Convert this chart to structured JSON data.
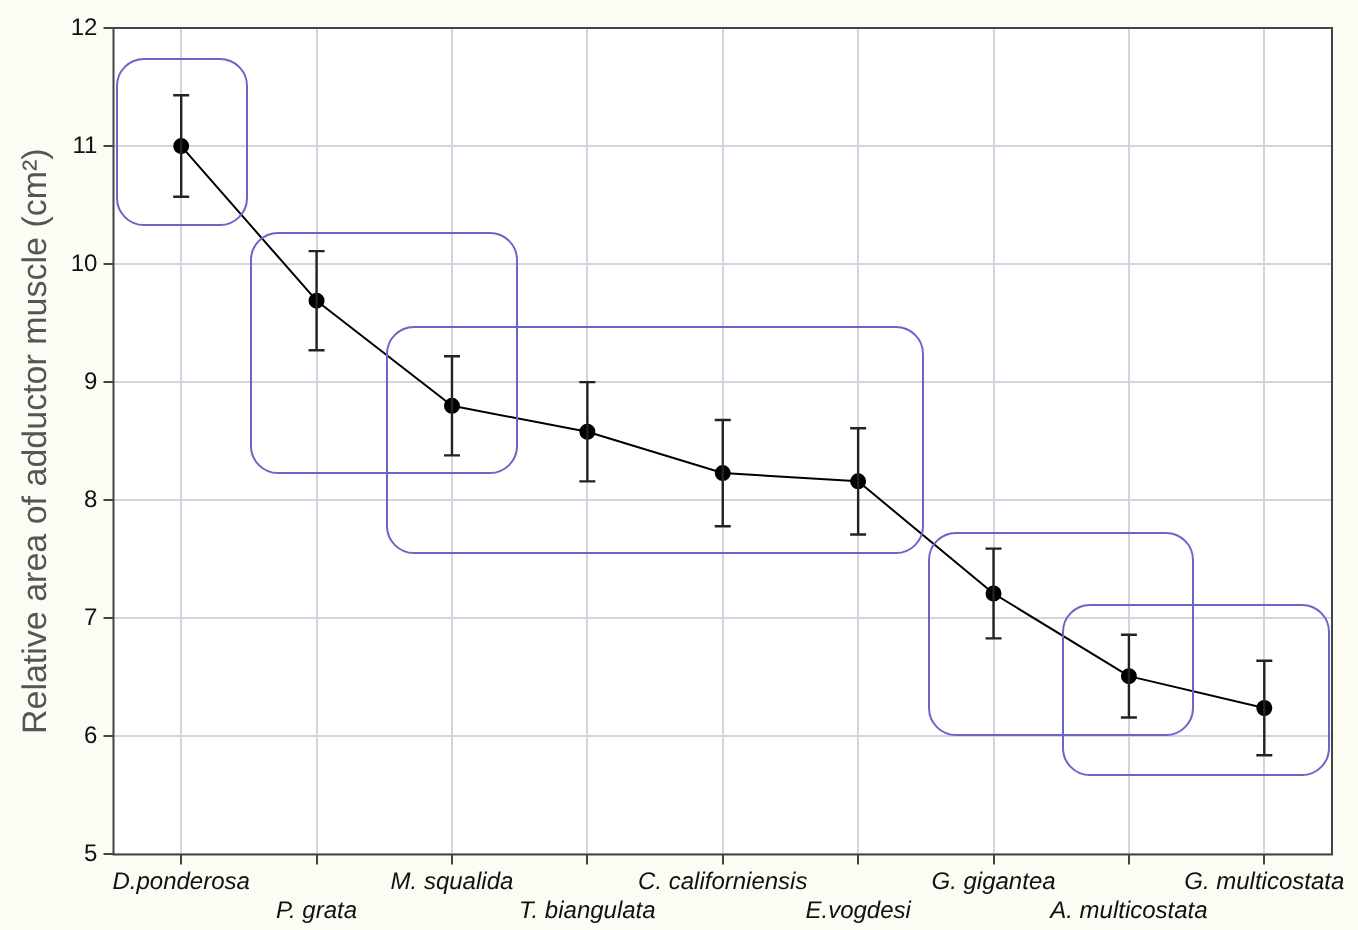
{
  "chart_data": {
    "type": "line",
    "categories": [
      "D.ponderosa",
      "P. grata",
      "M. squalida",
      "T. biangulata",
      "C. californiensis",
      "E.vogdesi",
      "G. gigantea",
      "A. multicostata",
      "G. multicostata"
    ],
    "series": [
      {
        "color": "#000000",
        "values": [
          11.0,
          9.69,
          8.8,
          8.58,
          8.23,
          8.16,
          7.21,
          6.51,
          6.24
        ],
        "errors": [
          0.43,
          0.42,
          0.42,
          0.42,
          0.45,
          0.45,
          0.38,
          0.35,
          0.4
        ]
      }
    ],
    "ylabel": "Relative area of adductor muscle (cm²)",
    "ylim": [
      5,
      12
    ],
    "yticks": [
      5,
      6,
      7,
      8,
      9,
      10,
      11,
      12
    ],
    "grid": true,
    "legend": false,
    "marker": "circle",
    "line_style": "solid"
  }
}
